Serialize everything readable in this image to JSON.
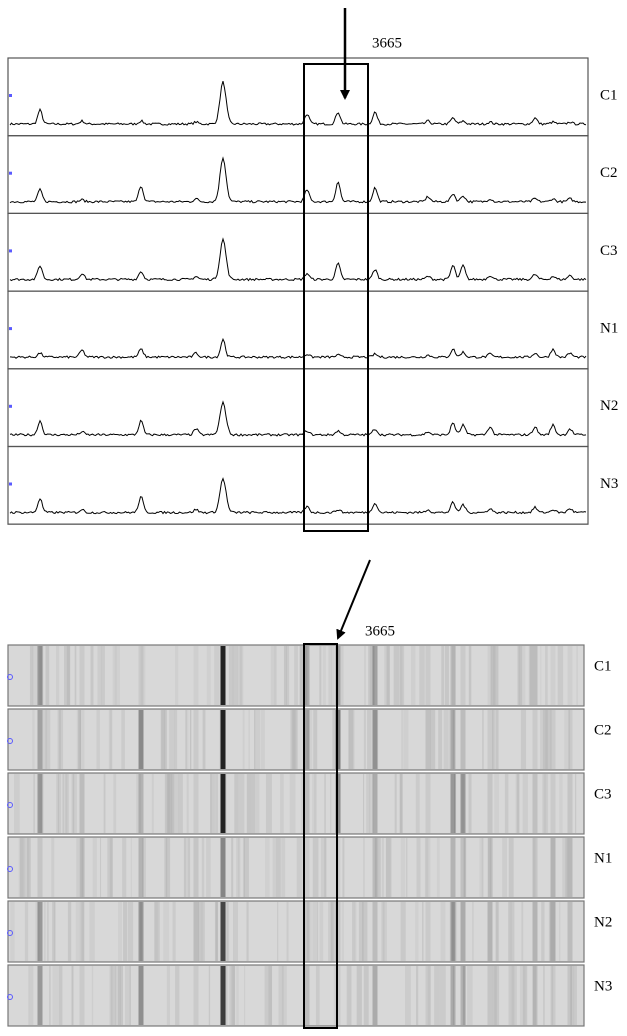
{
  "top_panel": {
    "marker_label": "3665",
    "lanes": [
      "C1",
      "C2",
      "C3",
      "N1",
      "N2",
      "N3"
    ]
  },
  "bottom_panel": {
    "marker_label": "3665",
    "lanes": [
      "C1",
      "C2",
      "C3",
      "N1",
      "N2",
      "N3"
    ]
  }
}
